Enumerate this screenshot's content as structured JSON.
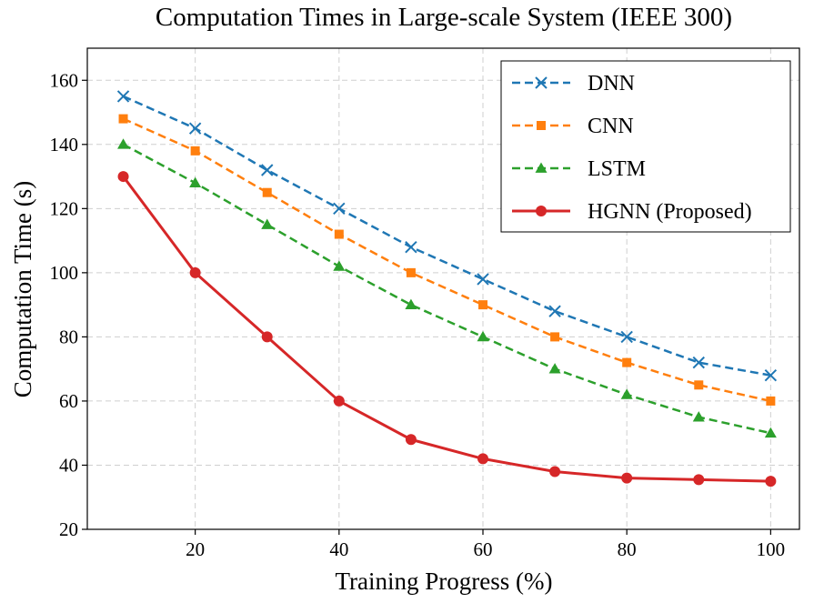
{
  "chart_data": {
    "type": "line",
    "title": "Computation Times in Large-scale System (IEEE 300)",
    "xlabel": "Training Progress (%)",
    "ylabel": "Computation Time (s)",
    "x": [
      10,
      20,
      30,
      40,
      50,
      60,
      70,
      80,
      90,
      100
    ],
    "xlim": [
      5,
      104
    ],
    "ylim": [
      20,
      170
    ],
    "xticks": [
      "20",
      "40",
      "60",
      "80",
      "100"
    ],
    "yticks": [
      "20",
      "40",
      "60",
      "80",
      "100",
      "120",
      "140",
      "160"
    ],
    "grid": true,
    "legend_position": "top-right",
    "series": [
      {
        "name": "DNN",
        "values": [
          155,
          145,
          132,
          120,
          108,
          98,
          88,
          80,
          72,
          68
        ],
        "color": "#1f77b4",
        "marker": "x",
        "linestyle": "dashed"
      },
      {
        "name": "CNN",
        "values": [
          148,
          138,
          125,
          112,
          100,
          90,
          80,
          72,
          65,
          60
        ],
        "color": "#ff7f0e",
        "marker": "square",
        "linestyle": "dashed"
      },
      {
        "name": "LSTM",
        "values": [
          140,
          128,
          115,
          102,
          90,
          80,
          70,
          62,
          55,
          50
        ],
        "color": "#2ca02c",
        "marker": "triangle",
        "linestyle": "dashed"
      },
      {
        "name": "HGNN (Proposed)",
        "values": [
          130,
          100,
          80,
          60,
          48,
          42,
          38,
          36,
          35.5,
          35
        ],
        "color": "#d62728",
        "marker": "circle",
        "linestyle": "solid"
      }
    ]
  }
}
